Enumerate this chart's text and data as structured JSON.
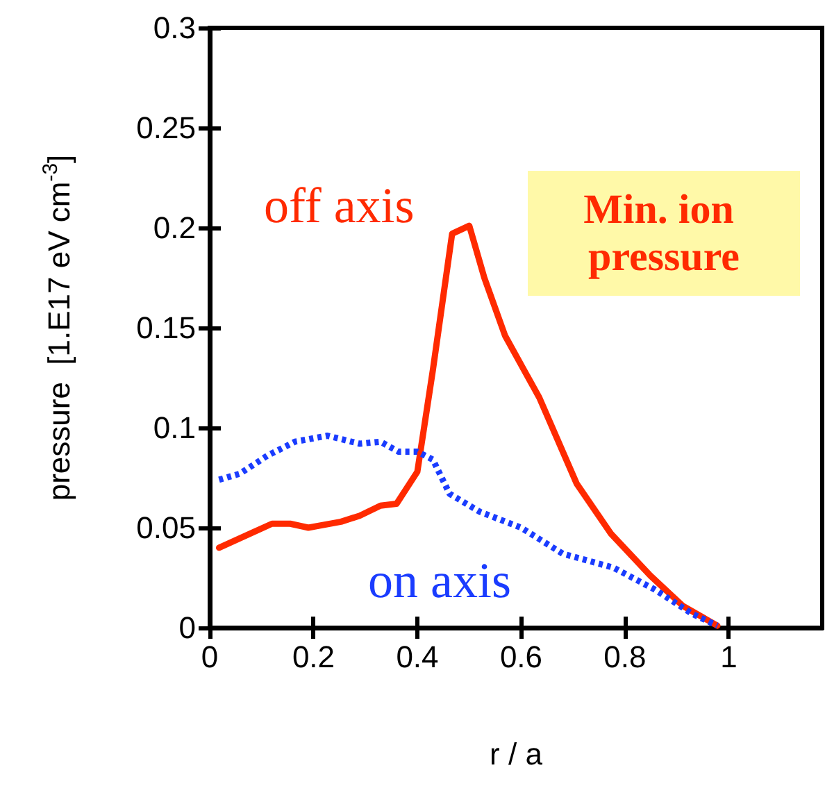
{
  "chart_data": {
    "type": "line",
    "xlabel": "r / a",
    "ylabel": "pressure  [1.E17 eV cm$^{-3}$]",
    "xlim": [
      0,
      1.18
    ],
    "xticks": [
      0,
      0.2,
      0.4,
      0.6,
      0.8,
      1
    ],
    "ylim": [
      0,
      0.3
    ],
    "yticks": [
      0,
      0.05,
      0.1,
      0.15,
      0.2,
      0.25,
      0.3
    ],
    "grid": false,
    "legend": false,
    "marker": "none",
    "series": [
      {
        "name": "off axis",
        "color": "#ff2a00",
        "line_style": "solid",
        "x": [
          0.018,
          0.12,
          0.155,
          0.19,
          0.253,
          0.289,
          0.329,
          0.36,
          0.4,
          0.43,
          0.467,
          0.5,
          0.529,
          0.569,
          0.635,
          0.707,
          0.773,
          0.849,
          0.911,
          0.978
        ],
        "values": [
          0.04,
          0.052,
          0.052,
          0.05,
          0.053,
          0.056,
          0.061,
          0.062,
          0.078,
          0.129,
          0.197,
          0.201,
          0.175,
          0.146,
          0.115,
          0.072,
          0.047,
          0.026,
          0.011,
          0.001
        ]
      },
      {
        "name": "on axis",
        "color": "#1a3cff",
        "line_style": "dotted",
        "x": [
          0.018,
          0.058,
          0.111,
          0.164,
          0.227,
          0.289,
          0.329,
          0.364,
          0.4,
          0.43,
          0.462,
          0.52,
          0.6,
          0.68,
          0.778,
          0.858,
          0.929,
          0.978
        ],
        "values": [
          0.074,
          0.077,
          0.086,
          0.093,
          0.096,
          0.092,
          0.093,
          0.088,
          0.088,
          0.084,
          0.067,
          0.058,
          0.05,
          0.037,
          0.03,
          0.019,
          0.007,
          0.001
        ]
      }
    ],
    "annotations": [
      "Min. ion pressure"
    ]
  }
}
